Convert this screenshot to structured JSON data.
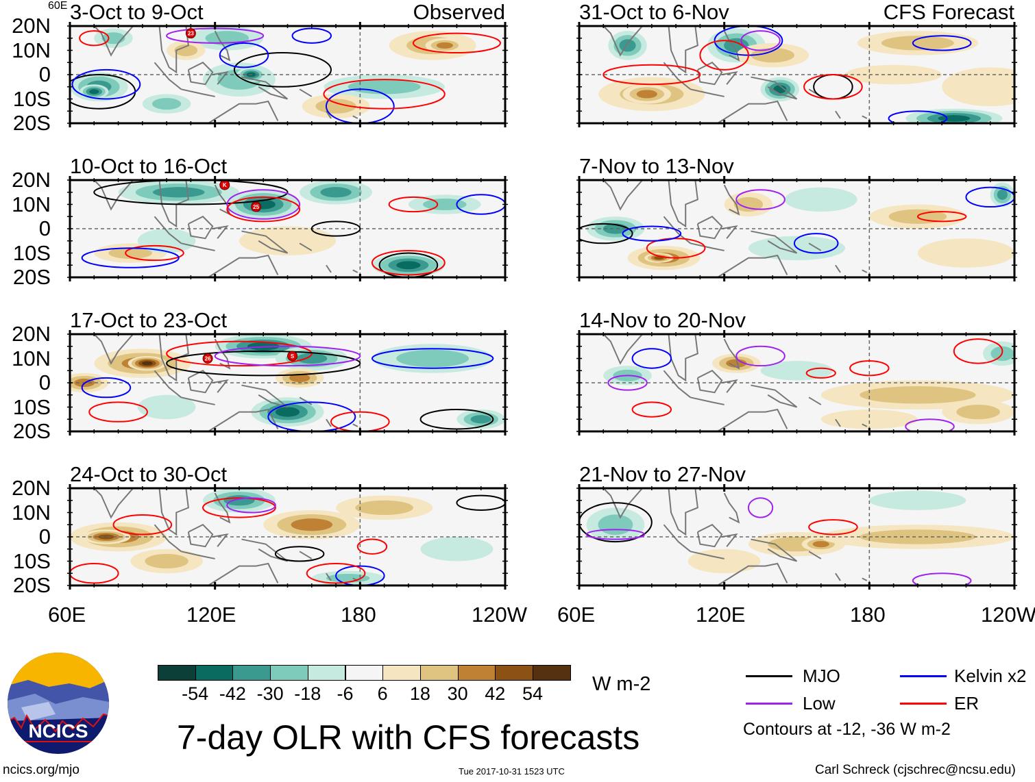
{
  "panels": [
    {
      "title": "3-Oct to 9-Oct",
      "tag": "Observed",
      "storms": [
        {
          "label": "23",
          "lon": 110,
          "lat": 17
        }
      ]
    },
    {
      "title": "31-Oct to 6-Nov",
      "tag": "CFS Forecast",
      "storms": []
    },
    {
      "title": "10-Oct to 16-Oct",
      "storms": [
        {
          "label": "K",
          "lon": 124,
          "lat": 18
        },
        {
          "label": "25",
          "lon": 137,
          "lat": 9
        }
      ]
    },
    {
      "title": "7-Nov to 13-Nov",
      "storms": []
    },
    {
      "title": "17-Oct to 23-Oct",
      "storms": [
        {
          "label": "26",
          "lon": 117,
          "lat": 10
        },
        {
          "label": "S",
          "lon": 152,
          "lat": 11
        }
      ]
    },
    {
      "title": "14-Nov to 20-Nov",
      "storms": []
    },
    {
      "title": "24-Oct to 30-Oct",
      "storms": []
    },
    {
      "title": "21-Nov to 27-Nov",
      "storms": []
    }
  ],
  "lat_labels": [
    "20N",
    "10N",
    "0",
    "10S",
    "20S"
  ],
  "lon_labels": [
    "60E",
    "120E",
    "180",
    "120W"
  ],
  "colorbar": {
    "colors": [
      "#0b3f37",
      "#0a6b60",
      "#3b9a90",
      "#7fcbbb",
      "#c6e9e0",
      "#f5f5f5",
      "#f5e6c1",
      "#dfc380",
      "#bf8134",
      "#8b5213",
      "#553110"
    ],
    "labels": [
      "-54",
      "-42",
      "-30",
      "-18",
      "-6",
      "6",
      "18",
      "30",
      "42",
      "54"
    ],
    "units": "W m-2"
  },
  "legend": {
    "items": [
      {
        "label": "MJO",
        "color": "#000000"
      },
      {
        "label": "Kelvin x2",
        "color": "#0000ff"
      },
      {
        "label": "Low",
        "color": "#a020f0"
      },
      {
        "label": "ER",
        "color": "#ff0000"
      }
    ],
    "note": "Contours at -12, -36 W m-2"
  },
  "title": "7-day OLR with CFS forecasts",
  "logo_text": "NCICS",
  "footer": {
    "left": "ncics.org/mjo",
    "center": "Tue 2017-10-31 1523 UTC",
    "right": "Carl Schreck (cjschrec@ncsu.edu)"
  }
}
